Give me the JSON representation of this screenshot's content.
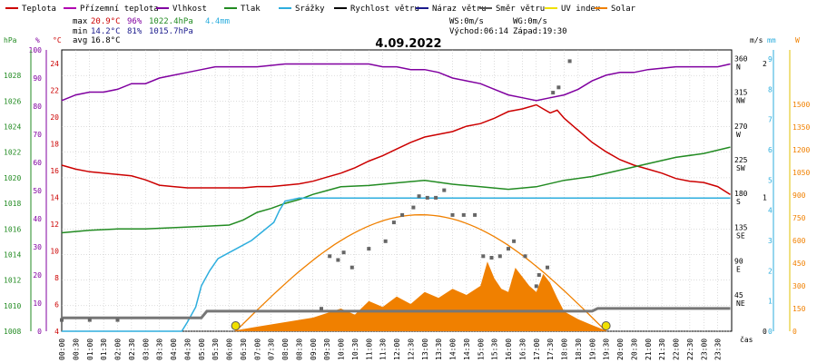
{
  "legend": [
    {
      "label": "Teplota",
      "color": "#cc0000"
    },
    {
      "label": "Přízemní teplota",
      "color": "#b000b0"
    },
    {
      "label": "Vlhkost",
      "color": "#8000a0"
    },
    {
      "label": "Tlak",
      "color": "#228b22"
    },
    {
      "label": "Srážky",
      "color": "#2eaede"
    },
    {
      "label": "Rychlost větru",
      "color": "#000000"
    },
    {
      "label": "Náraz větru",
      "color": "#1a1a8c"
    },
    {
      "label": "Směr větru",
      "color": "#555555"
    },
    {
      "label": "UV index",
      "color": "#f0e000"
    },
    {
      "label": "Solar",
      "color": "#f08000"
    }
  ],
  "stats": {
    "max_label": "max",
    "max_temp": "20.9°C",
    "max_hum": "96%",
    "max_press": "1022.4hPa",
    "max_rain": "4.4mm",
    "min_label": "min",
    "min_temp": "14.2°C",
    "min_hum": "81%",
    "min_press": "1015.7hPa",
    "avg_label": "avg",
    "avg_temp": "16.8°C",
    "ws": "WS:0m/s",
    "wg": "WG:0m/s",
    "sunrise": "Východ:06:14",
    "sunset": "Západ:19:30"
  },
  "chart_data": {
    "type": "line",
    "title": "4.09.2022",
    "xlabel": "čas",
    "x_ticks": [
      "00:00",
      "00:30",
      "01:00",
      "01:30",
      "02:00",
      "02:30",
      "03:00",
      "03:30",
      "04:00",
      "04:30",
      "05:00",
      "05:30",
      "06:00",
      "06:30",
      "07:00",
      "07:30",
      "08:00",
      "08:30",
      "09:00",
      "09:30",
      "10:00",
      "10:30",
      "11:00",
      "11:30",
      "12:00",
      "12:30",
      "13:00",
      "13:30",
      "14:00",
      "14:30",
      "15:00",
      "15:30",
      "16:00",
      "16:30",
      "17:00",
      "17:30",
      "18:00",
      "18:30",
      "19:00",
      "19:30",
      "20:00",
      "20:30",
      "21:00",
      "21:30",
      "22:00",
      "22:30",
      "23:00",
      "23:30"
    ],
    "axes": {
      "hpa": {
        "label": "hPa",
        "range": [
          1008,
          1030
        ],
        "ticks": [
          1008,
          1010,
          1012,
          1014,
          1016,
          1018,
          1020,
          1022,
          1024,
          1026,
          1028
        ],
        "color": "#228b22"
      },
      "pct": {
        "label": "%",
        "range": [
          0,
          100
        ],
        "ticks": [
          0,
          10,
          20,
          30,
          40,
          50,
          60,
          70,
          80,
          90,
          100
        ],
        "color": "#8000a0"
      },
      "temp": {
        "label": "°C",
        "range": [
          4,
          25
        ],
        "ticks": [
          4,
          6,
          8,
          10,
          12,
          14,
          16,
          18,
          20,
          22,
          24
        ],
        "color": "#cc0000"
      },
      "dir": {
        "label": "",
        "range": [
          0,
          375
        ],
        "ticks": [
          [
            45,
            "45",
            "NE"
          ],
          [
            90,
            "90",
            "E"
          ],
          [
            135,
            "135",
            "SE"
          ],
          [
            180,
            "180",
            "S"
          ],
          [
            225,
            "225",
            "SW"
          ],
          [
            270,
            "270",
            "W"
          ],
          [
            315,
            "315",
            "NW"
          ],
          [
            360,
            "360",
            "N"
          ]
        ],
        "color": "#000000"
      },
      "ms": {
        "label": "m/s",
        "range": [
          0,
          2.1
        ],
        "ticks": [
          0,
          1,
          2
        ],
        "color": "#000000"
      },
      "mm": {
        "label": "mm",
        "range": [
          0,
          9.3
        ],
        "ticks": [
          0,
          1,
          2,
          3,
          4,
          5,
          6,
          7,
          8,
          9
        ],
        "color": "#2eaede"
      },
      "w": {
        "label": "W",
        "range": [
          0,
          1860
        ],
        "ticks": [
          0,
          150,
          300,
          450,
          600,
          750,
          900,
          1050,
          1200,
          1350,
          1500
        ],
        "color": "#f08000"
      }
    },
    "series": [
      {
        "name": "Teplota",
        "axis": "temp",
        "color": "#cc0000",
        "x": [
          0,
          0.5,
          1,
          1.5,
          2,
          2.5,
          3,
          3.5,
          4,
          4.5,
          5,
          5.5,
          6,
          6.5,
          7,
          7.5,
          8,
          8.5,
          9,
          9.5,
          10,
          10.5,
          11,
          11.5,
          12,
          12.5,
          13,
          13.5,
          14,
          14.5,
          15,
          15.5,
          16,
          16.5,
          17,
          17.25,
          17.5,
          17.75,
          18,
          18.5,
          19,
          19.5,
          20,
          20.5,
          21,
          21.5,
          22,
          22.5,
          23,
          23.5,
          23.95
        ],
        "y": [
          16.4,
          16.1,
          15.9,
          15.8,
          15.7,
          15.6,
          15.3,
          14.9,
          14.8,
          14.7,
          14.7,
          14.7,
          14.7,
          14.7,
          14.8,
          14.8,
          14.9,
          15.0,
          15.2,
          15.5,
          15.8,
          16.2,
          16.7,
          17.1,
          17.6,
          18.1,
          18.5,
          18.7,
          18.9,
          19.3,
          19.5,
          19.9,
          20.4,
          20.6,
          20.9,
          20.6,
          20.3,
          20.5,
          19.9,
          19.0,
          18.1,
          17.4,
          16.8,
          16.4,
          16.1,
          15.8,
          15.4,
          15.2,
          15.1,
          14.8,
          14.2
        ]
      },
      {
        "name": "Vlhkost",
        "axis": "pct",
        "color": "#8000a0",
        "x": [
          0,
          0.5,
          1,
          1.5,
          2,
          2.5,
          3,
          3.5,
          4,
          4.5,
          5,
          5.5,
          6,
          7,
          8,
          9,
          10,
          11,
          11.5,
          12,
          12.5,
          13,
          13.5,
          14,
          14.5,
          15,
          15.5,
          16,
          16.5,
          17,
          17.5,
          18,
          18.5,
          19,
          19.5,
          20,
          20.5,
          21,
          22,
          23,
          23.5,
          23.95
        ],
        "y": [
          82,
          84,
          85,
          85,
          86,
          88,
          88,
          90,
          91,
          92,
          93,
          94,
          94,
          94,
          95,
          95,
          95,
          95,
          94,
          94,
          93,
          93,
          92,
          90,
          89,
          88,
          86,
          84,
          83,
          82,
          83,
          84,
          86,
          89,
          91,
          92,
          92,
          93,
          94,
          94,
          94,
          95
        ]
      },
      {
        "name": "Tlak",
        "axis": "hpa",
        "color": "#228b22",
        "x": [
          0,
          1,
          2,
          3,
          4,
          5,
          6,
          6.5,
          7,
          7.5,
          8,
          8.5,
          9,
          9.5,
          10,
          11,
          12,
          13,
          14,
          15,
          16,
          17,
          18,
          19,
          20,
          21,
          22,
          23,
          23.95
        ],
        "y": [
          1015.7,
          1015.9,
          1016.0,
          1016.0,
          1016.1,
          1016.2,
          1016.3,
          1016.7,
          1017.3,
          1017.6,
          1018.0,
          1018.3,
          1018.7,
          1019.0,
          1019.3,
          1019.4,
          1019.6,
          1019.8,
          1019.5,
          1019.3,
          1019.1,
          1019.3,
          1019.8,
          1020.1,
          1020.6,
          1021.1,
          1021.6,
          1021.9,
          1022.4
        ]
      },
      {
        "name": "Srážky",
        "axis": "mm",
        "color": "#2eaede",
        "x": [
          0,
          4.3,
          4.5,
          4.8,
          5.0,
          5.3,
          5.6,
          6.0,
          6.4,
          6.8,
          7.2,
          7.6,
          7.8,
          8.0,
          8.5,
          9,
          12,
          18,
          23.95
        ],
        "y": [
          0,
          0,
          0.3,
          0.8,
          1.5,
          2.0,
          2.4,
          2.6,
          2.8,
          3.0,
          3.3,
          3.6,
          4.0,
          4.3,
          4.4,
          4.4,
          4.4,
          4.4,
          4.4
        ]
      },
      {
        "name": "Rychlost větru",
        "axis": "ms",
        "color": "#777777",
        "x": [
          0,
          5,
          5.2,
          19.0,
          19.2,
          23.95
        ],
        "y": [
          0.1,
          0.1,
          0.15,
          0.15,
          0.17,
          0.17
        ]
      },
      {
        "name": "Solar",
        "axis": "w",
        "color": "#f08000",
        "fill": true,
        "x": [
          6.2,
          7,
          8,
          9,
          10,
          10.5,
          11,
          11.5,
          12,
          12.5,
          13,
          13.5,
          14,
          14.5,
          15,
          15.25,
          15.5,
          15.75,
          16,
          16.25,
          16.5,
          16.75,
          17,
          17.25,
          17.5,
          17.75,
          18,
          18.5,
          19,
          19.5
        ],
        "y": [
          5,
          30,
          60,
          90,
          150,
          110,
          200,
          160,
          230,
          180,
          260,
          220,
          280,
          240,
          300,
          460,
          350,
          280,
          260,
          420,
          360,
          300,
          260,
          380,
          320,
          220,
          130,
          80,
          40,
          5
        ]
      }
    ],
    "solar_theory": {
      "x": [
        6.23,
        12.87,
        19.5
      ],
      "y": [
        0,
        770,
        0
      ]
    },
    "wind_direction_points": {
      "x": [
        0,
        1,
        2,
        9.3,
        9.6,
        9.9,
        10.1,
        10.4,
        11.0,
        11.6,
        11.9,
        12.2,
        12.6,
        12.8,
        13.1,
        13.4,
        13.7,
        14.0,
        14.4,
        14.8,
        15.1,
        15.4,
        15.7,
        16.0,
        16.2,
        16.6,
        17.0,
        17.1,
        17.4,
        17.6,
        17.8,
        18.2
      ],
      "y": [
        15,
        15,
        15,
        30,
        100,
        95,
        105,
        85,
        110,
        120,
        145,
        155,
        165,
        180,
        178,
        178,
        188,
        155,
        155,
        155,
        100,
        98,
        100,
        110,
        120,
        100,
        60,
        75,
        85,
        318,
        325,
        360
      ]
    },
    "markers": [
      {
        "label": "sunrise",
        "x": 6.23
      },
      {
        "label": "sunset",
        "x": 19.5
      }
    ]
  }
}
